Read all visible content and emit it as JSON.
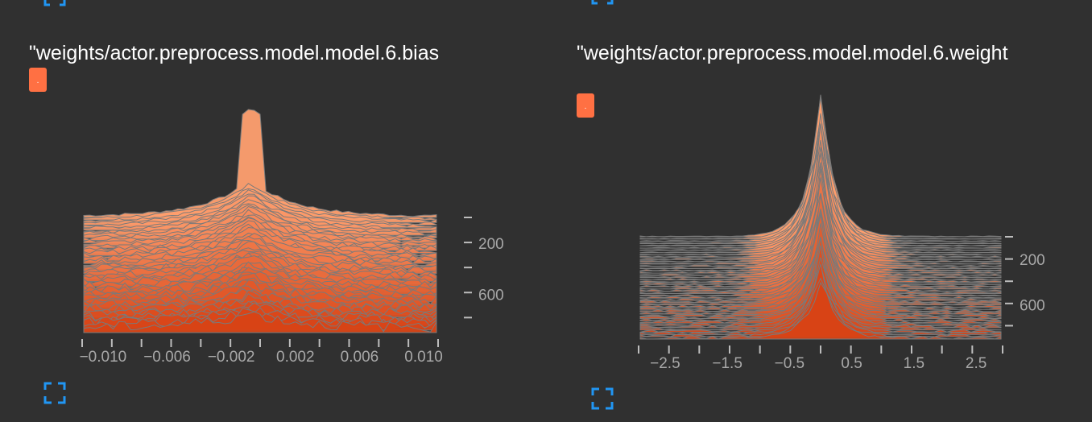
{
  "colors": {
    "background": "#303030",
    "accent": "#ff7043",
    "ridge_light": "#ffa070",
    "ridge_dark": "#d84315",
    "stroke": "#7a7a7a",
    "icon": "#2196f3"
  },
  "icons": {
    "expand": "fullscreen-icon"
  },
  "cards": [
    {
      "title": "\"weights/actor.preprocess.model.model.6.bias",
      "tag": ".",
      "chart_data": {
        "type": "histogram-ridge",
        "x_ticks": [
          "−0.010",
          "−0.006",
          "−0.002",
          "0.002",
          "0.006",
          "0.010"
        ],
        "x_tick_values": [
          -0.01,
          -0.006,
          -0.002,
          0.002,
          0.006,
          0.01
        ],
        "xlim": [
          -0.0112,
          0.0108
        ],
        "y_ticks": [
          "200",
          "600"
        ],
        "y_tick_values": [
          200,
          600
        ],
        "ylim": [
          0,
          900
        ],
        "center": -0.0008,
        "peak_value": -0.0008
      }
    },
    {
      "title": "\"weights/actor.preprocess.model.model.6.weight",
      "tag": ".",
      "chart_data": {
        "type": "histogram-ridge",
        "x_ticks": [
          "−2.5",
          "−1.5",
          "−0.5",
          "0.5",
          "1.5",
          "2.5"
        ],
        "x_tick_values": [
          -2.5,
          -1.5,
          -0.5,
          0.5,
          1.5,
          2.5
        ],
        "xlim": [
          -2.9,
          2.9
        ],
        "y_ticks": [
          "200",
          "600"
        ],
        "y_tick_values": [
          200,
          600
        ],
        "ylim": [
          0,
          900
        ],
        "center": 0.0,
        "peak_value": 0.0
      }
    }
  ]
}
